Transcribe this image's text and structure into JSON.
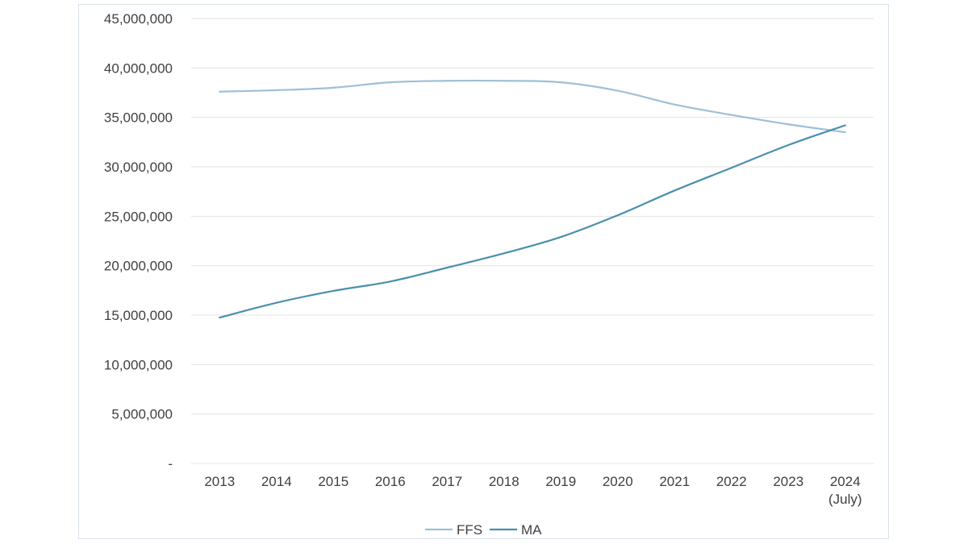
{
  "chart_data": {
    "type": "line",
    "categories": [
      "2013",
      "2014",
      "2015",
      "2016",
      "2017",
      "2018",
      "2019",
      "2020",
      "2021",
      "2022",
      "2023",
      "2024\n(July)"
    ],
    "series": [
      {
        "name": "FFS",
        "color": "#9dc0d6",
        "values": [
          37600000,
          37750000,
          38000000,
          38550000,
          38700000,
          38700000,
          38550000,
          37700000,
          36300000,
          35250000,
          34300000,
          33500000
        ]
      },
      {
        "name": "MA",
        "color": "#4a8fae",
        "values": [
          14750000,
          16250000,
          17450000,
          18400000,
          19800000,
          21250000,
          22900000,
          25100000,
          27600000,
          29900000,
          32200000,
          34200000
        ]
      }
    ],
    "ylim": [
      0,
      45000000
    ],
    "yticks": [
      0,
      5000000,
      10000000,
      15000000,
      20000000,
      25000000,
      30000000,
      35000000,
      40000000,
      45000000
    ],
    "ytick_labels": [
      "-",
      "5,000,000",
      "10,000,000",
      "15,000,000",
      "20,000,000",
      "25,000,000",
      "30,000,000",
      "35,000,000",
      "40,000,000",
      "45,000,000"
    ],
    "grid": true,
    "legend": "bottom-center",
    "title": "",
    "xlabel": "",
    "ylabel": ""
  }
}
